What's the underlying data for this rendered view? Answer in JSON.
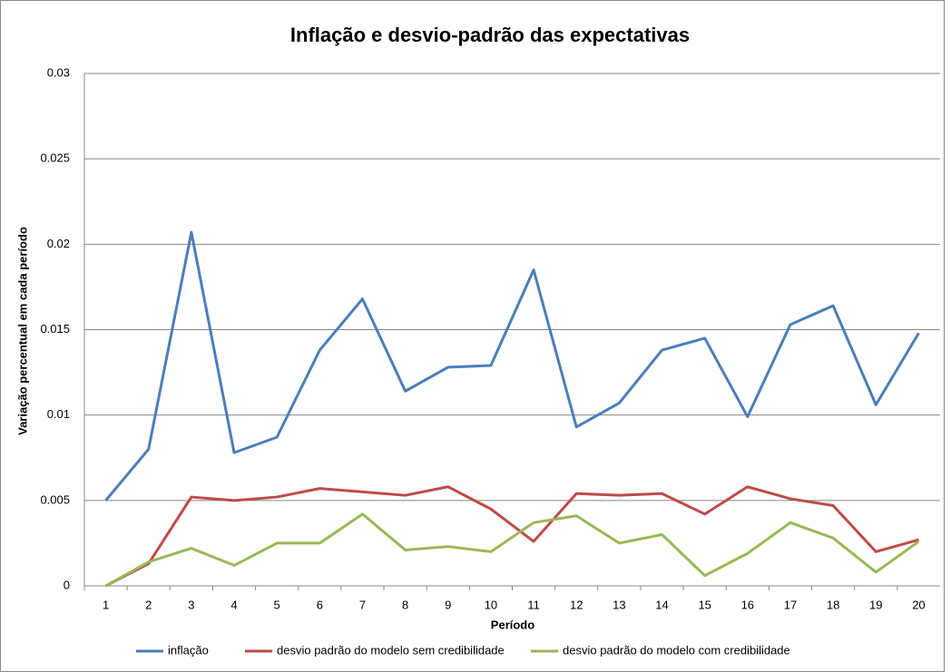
{
  "chart_data": {
    "type": "line",
    "title": "Inflação e desvio-padrão das expectativas",
    "x_label": "Período",
    "y_label": "Variação percentual em cada período",
    "categories": [
      "1",
      "2",
      "3",
      "4",
      "5",
      "6",
      "7",
      "8",
      "9",
      "10",
      "11",
      "12",
      "13",
      "14",
      "15",
      "16",
      "17",
      "18",
      "19",
      "20"
    ],
    "series": [
      {
        "name": "inflação",
        "color": "#4a7ebb",
        "values": [
          0.005,
          0.008,
          0.0207,
          0.0078,
          0.0087,
          0.0138,
          0.0168,
          0.0114,
          0.0128,
          0.0129,
          0.0185,
          0.0093,
          0.0107,
          0.0138,
          0.0145,
          0.0099,
          0.0153,
          0.0164,
          0.0106,
          0.0148
        ]
      },
      {
        "name": "desvio padrão do modelo sem credibilidade",
        "color": "#be4b48",
        "values": [
          0,
          0.0013,
          0.0052,
          0.005,
          0.0052,
          0.0057,
          0.0055,
          0.0053,
          0.0058,
          0.0045,
          0.0026,
          0.0054,
          0.0053,
          0.0054,
          0.0042,
          0.0058,
          0.0051,
          0.0047,
          0.002,
          0.0027
        ]
      },
      {
        "name": "desvio padrão do modelo com credibilidade",
        "color": "#98b954",
        "values": [
          0,
          0.0014,
          0.0022,
          0.0012,
          0.0025,
          0.0025,
          0.0042,
          0.0021,
          0.0023,
          0.002,
          0.0037,
          0.0041,
          0.0025,
          0.003,
          0.0006,
          0.0019,
          0.0037,
          0.0028,
          0.0008,
          0.0026
        ]
      }
    ],
    "ylim": [
      0,
      0.03
    ],
    "yticks": [
      0,
      0.005,
      0.01,
      0.015,
      0.02,
      0.025,
      0.03
    ],
    "grid": true,
    "legend": "bottom"
  }
}
